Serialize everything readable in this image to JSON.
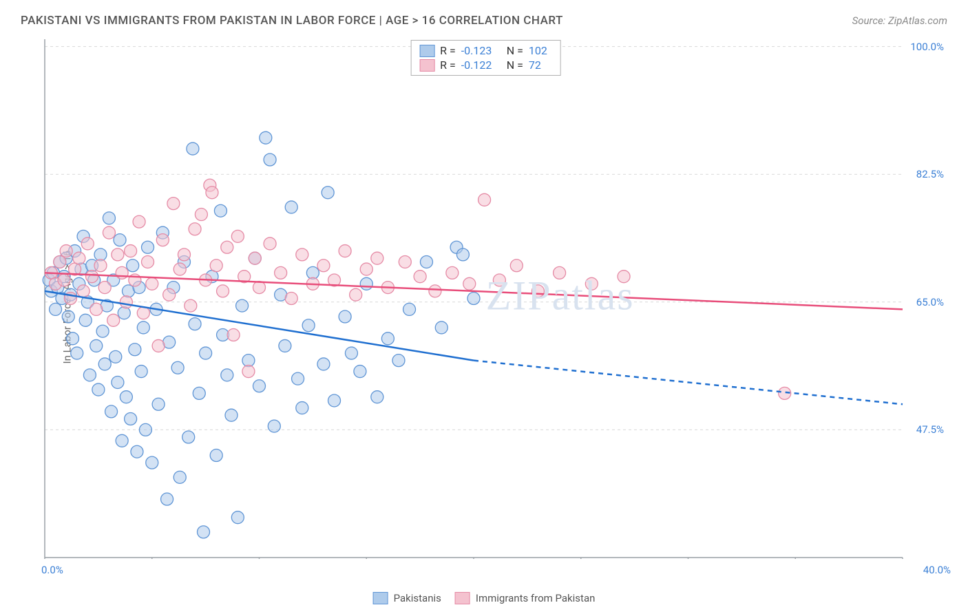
{
  "title": "PAKISTANI VS IMMIGRANTS FROM PAKISTAN IN LABOR FORCE | AGE > 16 CORRELATION CHART",
  "source_label": "Source: ZipAtlas.com",
  "y_axis_label": "In Labor Force | Age > 16",
  "watermark": "ZIPatlas",
  "chart": {
    "type": "scatter-with-regression",
    "background_color": "#ffffff",
    "grid_color": "#d8d8d8",
    "axis_line_color": "#9aa0a6",
    "tick_color": "#9aa0a6",
    "x_min": 0.0,
    "x_max": 40.0,
    "y_min": 30.0,
    "y_max": 101.0,
    "y_gridlines": [
      47.5,
      65.0,
      82.5,
      100.0
    ],
    "y_tick_labels": [
      "47.5%",
      "65.0%",
      "82.5%",
      "100.0%"
    ],
    "x_tick_labels": {
      "left": "0.0%",
      "right": "40.0%"
    },
    "x_tick_positions": [
      0,
      5,
      10,
      15,
      20,
      25,
      30,
      35,
      40
    ],
    "marker_radius": 9,
    "marker_opacity": 0.55,
    "line_width": 2.5
  },
  "series": [
    {
      "id": "pakistanis",
      "label": "Pakistanis",
      "color_fill": "#aecbeb",
      "color_stroke": "#5f95d5",
      "line_color": "#1f6fd0",
      "R": "-0.123",
      "N": "102",
      "regression": {
        "x1": 0.0,
        "y1": 66.5,
        "x_solid_end": 20.0,
        "y_solid_end": 57.0,
        "x2": 40.0,
        "y2": 51.0
      },
      "points": [
        [
          0.2,
          68.0
        ],
        [
          0.3,
          66.5
        ],
        [
          0.4,
          69.0
        ],
        [
          0.5,
          64.0
        ],
        [
          0.6,
          67.0
        ],
        [
          0.7,
          70.5
        ],
        [
          0.8,
          65.5
        ],
        [
          0.9,
          68.5
        ],
        [
          1.0,
          71.0
        ],
        [
          1.1,
          63.0
        ],
        [
          1.2,
          66.0
        ],
        [
          1.3,
          60.0
        ],
        [
          1.4,
          72.0
        ],
        [
          1.5,
          58.0
        ],
        [
          1.6,
          67.5
        ],
        [
          1.7,
          69.5
        ],
        [
          1.8,
          74.0
        ],
        [
          1.9,
          62.5
        ],
        [
          2.0,
          65.0
        ],
        [
          2.1,
          55.0
        ],
        [
          2.2,
          70.0
        ],
        [
          2.3,
          68.0
        ],
        [
          2.4,
          59.0
        ],
        [
          2.5,
          53.0
        ],
        [
          2.6,
          71.5
        ],
        [
          2.7,
          61.0
        ],
        [
          2.8,
          56.5
        ],
        [
          2.9,
          64.5
        ],
        [
          3.0,
          76.5
        ],
        [
          3.1,
          50.0
        ],
        [
          3.2,
          68.0
        ],
        [
          3.3,
          57.5
        ],
        [
          3.4,
          54.0
        ],
        [
          3.5,
          73.5
        ],
        [
          3.6,
          46.0
        ],
        [
          3.7,
          63.5
        ],
        [
          3.8,
          52.0
        ],
        [
          3.9,
          66.5
        ],
        [
          4.0,
          49.0
        ],
        [
          4.1,
          70.0
        ],
        [
          4.2,
          58.5
        ],
        [
          4.3,
          44.5
        ],
        [
          4.4,
          67.0
        ],
        [
          4.5,
          55.5
        ],
        [
          4.6,
          61.5
        ],
        [
          4.7,
          47.5
        ],
        [
          4.8,
          72.5
        ],
        [
          5.0,
          43.0
        ],
        [
          5.2,
          64.0
        ],
        [
          5.3,
          51.0
        ],
        [
          5.5,
          74.5
        ],
        [
          5.7,
          38.0
        ],
        [
          5.8,
          59.5
        ],
        [
          6.0,
          67.0
        ],
        [
          6.2,
          56.0
        ],
        [
          6.3,
          41.0
        ],
        [
          6.5,
          70.5
        ],
        [
          6.7,
          46.5
        ],
        [
          6.9,
          86.0
        ],
        [
          7.0,
          62.0
        ],
        [
          7.2,
          52.5
        ],
        [
          7.4,
          33.5
        ],
        [
          7.5,
          58.0
        ],
        [
          7.8,
          68.5
        ],
        [
          8.0,
          44.0
        ],
        [
          8.2,
          77.5
        ],
        [
          8.3,
          60.5
        ],
        [
          8.5,
          55.0
        ],
        [
          8.7,
          49.5
        ],
        [
          9.0,
          35.5
        ],
        [
          9.2,
          64.5
        ],
        [
          9.5,
          57.0
        ],
        [
          9.8,
          71.0
        ],
        [
          10.0,
          53.5
        ],
        [
          10.3,
          87.5
        ],
        [
          10.5,
          84.5
        ],
        [
          10.7,
          48.0
        ],
        [
          11.0,
          66.0
        ],
        [
          11.2,
          59.0
        ],
        [
          11.5,
          78.0
        ],
        [
          11.8,
          54.5
        ],
        [
          12.0,
          50.5
        ],
        [
          12.3,
          61.8
        ],
        [
          12.5,
          69.0
        ],
        [
          13.0,
          56.5
        ],
        [
          13.2,
          80.0
        ],
        [
          13.5,
          51.5
        ],
        [
          14.0,
          63.0
        ],
        [
          14.3,
          58.0
        ],
        [
          14.7,
          55.5
        ],
        [
          15.0,
          67.5
        ],
        [
          15.5,
          52.0
        ],
        [
          16.0,
          60.0
        ],
        [
          16.5,
          57.0
        ],
        [
          17.0,
          64.0
        ],
        [
          17.8,
          70.5
        ],
        [
          18.5,
          61.5
        ],
        [
          19.2,
          72.5
        ],
        [
          19.5,
          71.5
        ],
        [
          20.0,
          65.5
        ]
      ]
    },
    {
      "id": "immigrants",
      "label": "Immigrants from Pakistan",
      "color_fill": "#f4c2cf",
      "color_stroke": "#e58aa5",
      "line_color": "#e84d7a",
      "R": "-0.122",
      "N": "72",
      "regression": {
        "x1": 0.0,
        "y1": 69.0,
        "x_solid_end": 40.0,
        "y_solid_end": 64.0,
        "x2": 40.0,
        "y2": 64.0
      },
      "points": [
        [
          0.3,
          69.0
        ],
        [
          0.5,
          67.5
        ],
        [
          0.7,
          70.5
        ],
        [
          0.9,
          68.0
        ],
        [
          1.0,
          72.0
        ],
        [
          1.2,
          65.5
        ],
        [
          1.4,
          69.5
        ],
        [
          1.6,
          71.0
        ],
        [
          1.8,
          66.5
        ],
        [
          2.0,
          73.0
        ],
        [
          2.2,
          68.5
        ],
        [
          2.4,
          64.0
        ],
        [
          2.6,
          70.0
        ],
        [
          2.8,
          67.0
        ],
        [
          3.0,
          74.5
        ],
        [
          3.2,
          62.5
        ],
        [
          3.4,
          71.5
        ],
        [
          3.6,
          69.0
        ],
        [
          3.8,
          65.0
        ],
        [
          4.0,
          72.0
        ],
        [
          4.2,
          68.0
        ],
        [
          4.4,
          76.0
        ],
        [
          4.6,
          63.5
        ],
        [
          4.8,
          70.5
        ],
        [
          5.0,
          67.5
        ],
        [
          5.3,
          59.0
        ],
        [
          5.5,
          73.5
        ],
        [
          5.8,
          66.0
        ],
        [
          6.0,
          78.5
        ],
        [
          6.3,
          69.5
        ],
        [
          6.5,
          71.5
        ],
        [
          6.8,
          64.5
        ],
        [
          7.0,
          75.0
        ],
        [
          7.3,
          77.0
        ],
        [
          7.5,
          68.0
        ],
        [
          7.7,
          81.0
        ],
        [
          7.8,
          80.0
        ],
        [
          8.0,
          70.0
        ],
        [
          8.3,
          66.5
        ],
        [
          8.5,
          72.5
        ],
        [
          8.8,
          60.5
        ],
        [
          9.0,
          74.0
        ],
        [
          9.3,
          68.5
        ],
        [
          9.5,
          55.5
        ],
        [
          9.8,
          71.0
        ],
        [
          10.0,
          67.0
        ],
        [
          10.5,
          73.0
        ],
        [
          11.0,
          69.0
        ],
        [
          11.5,
          65.5
        ],
        [
          12.0,
          71.5
        ],
        [
          12.5,
          67.5
        ],
        [
          13.0,
          70.0
        ],
        [
          13.5,
          68.0
        ],
        [
          14.0,
          72.0
        ],
        [
          14.5,
          66.0
        ],
        [
          15.0,
          69.5
        ],
        [
          15.5,
          71.0
        ],
        [
          16.0,
          67.0
        ],
        [
          16.8,
          70.5
        ],
        [
          17.5,
          68.5
        ],
        [
          18.2,
          66.5
        ],
        [
          19.0,
          69.0
        ],
        [
          19.8,
          67.5
        ],
        [
          20.5,
          79.0
        ],
        [
          21.2,
          68.0
        ],
        [
          22.0,
          70.0
        ],
        [
          23.0,
          66.5
        ],
        [
          24.0,
          69.0
        ],
        [
          25.5,
          67.5
        ],
        [
          27.0,
          68.5
        ],
        [
          34.5,
          52.5
        ]
      ]
    }
  ],
  "legend_bottom": [
    {
      "label": "Pakistanis",
      "fill": "#aecbeb",
      "stroke": "#5f95d5"
    },
    {
      "label": "Immigrants from Pakistan",
      "fill": "#f4c2cf",
      "stroke": "#e58aa5"
    }
  ]
}
